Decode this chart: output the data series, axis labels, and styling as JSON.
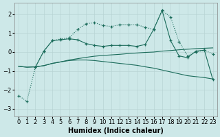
{
  "background_color": "#cde8e8",
  "grid_color": "#b8d4d4",
  "line_color": "#1a6b5a",
  "xlabel": "Humidex (Indice chaleur)",
  "xlim": [
    -0.5,
    23.5
  ],
  "ylim": [
    -3.4,
    2.6
  ],
  "yticks": [
    -3,
    -2,
    -1,
    0,
    1,
    2
  ],
  "xticks": [
    0,
    1,
    2,
    3,
    4,
    5,
    6,
    7,
    8,
    9,
    10,
    11,
    12,
    13,
    14,
    15,
    16,
    17,
    18,
    19,
    20,
    21,
    22,
    23
  ],
  "s1_x": [
    0,
    1,
    2,
    3,
    4,
    5,
    6,
    7,
    8,
    9,
    10,
    11,
    12,
    13,
    14,
    15,
    16,
    17,
    18,
    19,
    20,
    21,
    22,
    23
  ],
  "s1_y": [
    -2.3,
    -2.6,
    -0.8,
    0.05,
    0.6,
    0.7,
    0.75,
    1.2,
    1.5,
    1.55,
    1.4,
    1.35,
    1.45,
    1.45,
    1.45,
    1.3,
    1.2,
    2.2,
    1.85,
    0.55,
    -0.2,
    0.0,
    0.1,
    -0.1
  ],
  "s2_x": [
    2,
    3,
    4,
    5,
    6,
    7,
    8,
    9,
    10,
    11,
    12,
    13,
    14,
    15,
    16,
    17,
    18,
    19,
    20,
    21,
    22,
    23
  ],
  "s2_y": [
    -0.8,
    0.05,
    0.6,
    0.65,
    0.7,
    0.65,
    0.45,
    0.35,
    0.3,
    0.35,
    0.35,
    0.35,
    0.3,
    0.4,
    1.2,
    2.2,
    0.6,
    -0.2,
    -0.3,
    0.05,
    0.1,
    -1.45
  ],
  "s3_x": [
    0,
    1,
    2,
    3,
    4,
    5,
    6,
    7,
    8,
    9,
    10,
    11,
    12,
    13,
    14,
    15,
    16,
    17,
    18,
    19,
    20,
    21,
    22,
    23
  ],
  "s3_y": [
    -0.75,
    -0.8,
    -0.78,
    -0.72,
    -0.6,
    -0.52,
    -0.42,
    -0.35,
    -0.28,
    -0.22,
    -0.18,
    -0.15,
    -0.12,
    -0.08,
    -0.05,
    -0.02,
    0.0,
    0.05,
    0.08,
    0.12,
    0.15,
    0.18,
    0.2,
    0.22
  ],
  "s4_x": [
    0,
    1,
    2,
    3,
    4,
    5,
    6,
    7,
    8,
    9,
    10,
    11,
    12,
    13,
    14,
    15,
    16,
    17,
    18,
    19,
    20,
    21,
    22,
    23
  ],
  "s4_y": [
    -0.75,
    -0.8,
    -0.78,
    -0.72,
    -0.6,
    -0.52,
    -0.45,
    -0.42,
    -0.42,
    -0.45,
    -0.5,
    -0.55,
    -0.6,
    -0.65,
    -0.7,
    -0.78,
    -0.85,
    -0.95,
    -1.05,
    -1.15,
    -1.25,
    -1.3,
    -1.35,
    -1.42
  ]
}
